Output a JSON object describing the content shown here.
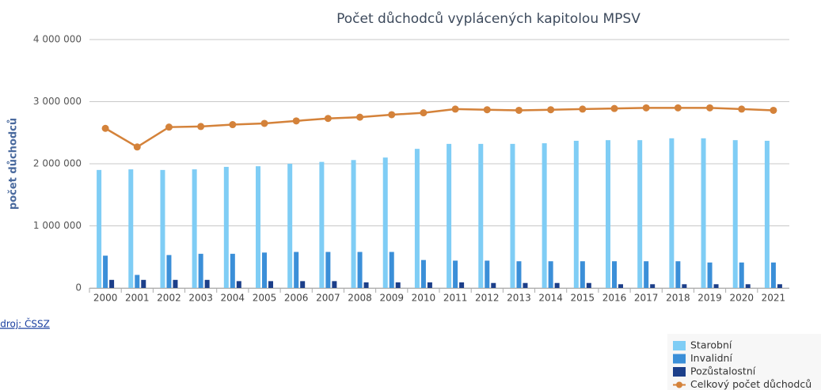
{
  "chart_data": {
    "type": "bar",
    "title": "Počet důchodců vyplácených kapitolou MPSV",
    "ylabel": "počet důchodců",
    "source": "Zdroj: ČSSZ",
    "categories": [
      "2000",
      "2001",
      "2002",
      "2003",
      "2004",
      "2005",
      "2006",
      "2007",
      "2008",
      "2009",
      "2010",
      "2011",
      "2012",
      "2013",
      "2014",
      "2015",
      "2016",
      "2017",
      "2018",
      "2019",
      "2020",
      "2021"
    ],
    "ylim": [
      0,
      4000000
    ],
    "yticks": [
      0,
      {
        "value": 1000000,
        "label": "1 000 000"
      },
      {
        "value": 2000000,
        "label": "2 000 000"
      },
      {
        "value": 3000000,
        "label": "3 000 000"
      },
      {
        "value": 4000000,
        "label": "4 000 000"
      }
    ],
    "grid": true,
    "legend": "bottom-right",
    "series": [
      {
        "name": "Starobní",
        "type": "bar",
        "color": "#7fcdf5",
        "values": [
          1900000,
          1910000,
          1900000,
          1910000,
          1950000,
          1960000,
          2000000,
          2030000,
          2060000,
          2100000,
          2240000,
          2320000,
          2320000,
          2320000,
          2330000,
          2370000,
          2380000,
          2380000,
          2410000,
          2410000,
          2380000,
          2370000
        ]
      },
      {
        "name": "Invalidní",
        "type": "bar",
        "color": "#3b8fd8",
        "values": [
          520000,
          210000,
          530000,
          550000,
          550000,
          570000,
          580000,
          580000,
          580000,
          580000,
          450000,
          440000,
          440000,
          430000,
          430000,
          430000,
          430000,
          430000,
          430000,
          410000,
          410000,
          410000
        ]
      },
      {
        "name": "Pozůstalostní",
        "type": "bar",
        "color": "#1c3f8a",
        "values": [
          130000,
          130000,
          130000,
          130000,
          110000,
          110000,
          110000,
          110000,
          90000,
          90000,
          90000,
          90000,
          80000,
          80000,
          80000,
          80000,
          60000,
          60000,
          60000,
          60000,
          60000,
          60000
        ]
      },
      {
        "name": "Celkový počet důchodců",
        "type": "line",
        "color": "#d4823a",
        "values": [
          2570000,
          2270000,
          2590000,
          2600000,
          2630000,
          2650000,
          2690000,
          2730000,
          2750000,
          2790000,
          2820000,
          2880000,
          2870000,
          2860000,
          2870000,
          2880000,
          2890000,
          2900000,
          2900000,
          2900000,
          2880000,
          2860000
        ]
      }
    ]
  }
}
